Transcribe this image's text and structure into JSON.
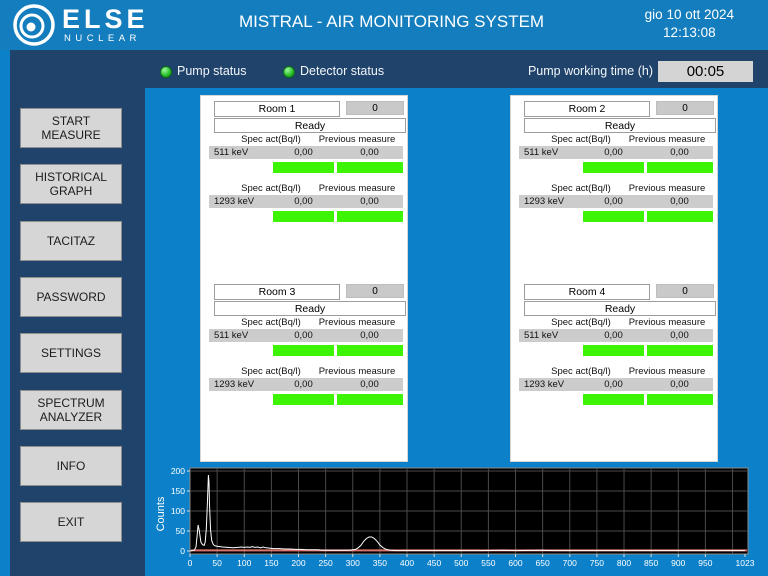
{
  "header": {
    "logo_brand": "ELSE",
    "logo_sub": "NUCLEAR",
    "title": "MISTRAL - AIR MONITORING SYSTEM",
    "date": "gio 10 ott 2024",
    "time": "12:13:08"
  },
  "statusbar": {
    "pump_status": "Pump status",
    "detector_status": "Detector status",
    "pump_time_label": "Pump working time (h)",
    "pump_time_value": "00:05"
  },
  "sidebar": {
    "buttons": [
      "START MEASURE",
      "HISTORICAL GRAPH",
      "TACITAZ",
      "PASSWORD",
      "SETTINGS",
      "SPECTRUM ANALYZER",
      "INFO",
      "EXIT"
    ]
  },
  "labels": {
    "spec_act": "Spec act(Bq/l)",
    "previous": "Previous measure"
  },
  "rooms": [
    {
      "name": "Room 1",
      "count": "0",
      "status": "Ready",
      "measures": [
        {
          "isotope": "511 keV",
          "spec_act": "0,00",
          "previous": "0,00"
        },
        {
          "isotope": "1293 keV",
          "spec_act": "0,00",
          "previous": "0,00"
        }
      ]
    },
    {
      "name": "Room 2",
      "count": "0",
      "status": "Ready",
      "measures": [
        {
          "isotope": "511 keV",
          "spec_act": "0,00",
          "previous": "0,00"
        },
        {
          "isotope": "1293 keV",
          "spec_act": "0,00",
          "previous": "0,00"
        }
      ]
    },
    {
      "name": "Room 3",
      "count": "0",
      "status": "Ready",
      "measures": [
        {
          "isotope": "511 keV",
          "spec_act": "0,00",
          "previous": "0,00"
        },
        {
          "isotope": "1293 keV",
          "spec_act": "0,00",
          "previous": "0,00"
        }
      ]
    },
    {
      "name": "Room 4",
      "count": "0",
      "status": "Ready",
      "measures": [
        {
          "isotope": "511 keV",
          "spec_act": "0,00",
          "previous": "0,00"
        },
        {
          "isotope": "1293 keV",
          "spec_act": "0,00",
          "previous": "0,00"
        }
      ]
    }
  ],
  "colors": {
    "header_blue": "#147dbd",
    "content_blue": "#0c81c9",
    "navy": "#1f436a",
    "green_bar": "#3cf404",
    "led_green": "#1db81d",
    "threshold_red": "#e0736b"
  },
  "chart_data": {
    "type": "line",
    "title": "",
    "xlabel": "",
    "ylabel": "Counts",
    "xlim": [
      0,
      1023
    ],
    "ylim": [
      0,
      200
    ],
    "x_ticks": [
      0,
      50,
      100,
      150,
      200,
      250,
      300,
      350,
      400,
      450,
      500,
      550,
      600,
      650,
      700,
      750,
      800,
      850,
      900,
      950,
      1023
    ],
    "y_ticks": [
      0,
      50,
      100,
      150,
      200
    ],
    "grid": true,
    "background": "#000000",
    "line_color": "#ffffff",
    "threshold": {
      "value": 1.5,
      "color": "#e0736b"
    },
    "series": [
      {
        "name": "spectrum",
        "points": [
          [
            0,
            0
          ],
          [
            8,
            2
          ],
          [
            11,
            10
          ],
          [
            13,
            38
          ],
          [
            15,
            65
          ],
          [
            17,
            52
          ],
          [
            20,
            22
          ],
          [
            23,
            16
          ],
          [
            26,
            14
          ],
          [
            28,
            22
          ],
          [
            30,
            55
          ],
          [
            32,
            120
          ],
          [
            34,
            190
          ],
          [
            35,
            172
          ],
          [
            36,
            115
          ],
          [
            38,
            52
          ],
          [
            40,
            26
          ],
          [
            43,
            16
          ],
          [
            46,
            13
          ],
          [
            50,
            12
          ],
          [
            55,
            11
          ],
          [
            60,
            10
          ],
          [
            70,
            9
          ],
          [
            80,
            8
          ],
          [
            88,
            9
          ],
          [
            95,
            10
          ],
          [
            100,
            9
          ],
          [
            105,
            10
          ],
          [
            110,
            9
          ],
          [
            115,
            11
          ],
          [
            120,
            9
          ],
          [
            125,
            10
          ],
          [
            130,
            8
          ],
          [
            135,
            10
          ],
          [
            140,
            8
          ],
          [
            148,
            7
          ],
          [
            155,
            6
          ],
          [
            165,
            6
          ],
          [
            175,
            5
          ],
          [
            185,
            5
          ],
          [
            195,
            4
          ],
          [
            205,
            4
          ],
          [
            215,
            3
          ],
          [
            225,
            3
          ],
          [
            235,
            3
          ],
          [
            245,
            2
          ],
          [
            255,
            2
          ],
          [
            265,
            2
          ],
          [
            275,
            2
          ],
          [
            285,
            2
          ],
          [
            295,
            2
          ],
          [
            300,
            3
          ],
          [
            305,
            4
          ],
          [
            310,
            8
          ],
          [
            315,
            14
          ],
          [
            320,
            24
          ],
          [
            325,
            31
          ],
          [
            330,
            35
          ],
          [
            335,
            35
          ],
          [
            340,
            31
          ],
          [
            345,
            24
          ],
          [
            350,
            15
          ],
          [
            355,
            9
          ],
          [
            360,
            5
          ],
          [
            365,
            3
          ],
          [
            370,
            2
          ],
          [
            380,
            1
          ],
          [
            400,
            1
          ],
          [
            430,
            1
          ],
          [
            460,
            1
          ],
          [
            500,
            1
          ],
          [
            540,
            1
          ],
          [
            575,
            2
          ],
          [
            600,
            1
          ],
          [
            650,
            2
          ],
          [
            670,
            1
          ],
          [
            720,
            1
          ],
          [
            760,
            1
          ],
          [
            800,
            1
          ],
          [
            850,
            1
          ],
          [
            900,
            1
          ],
          [
            950,
            1
          ],
          [
            1000,
            1
          ],
          [
            1023,
            1
          ]
        ]
      }
    ]
  }
}
